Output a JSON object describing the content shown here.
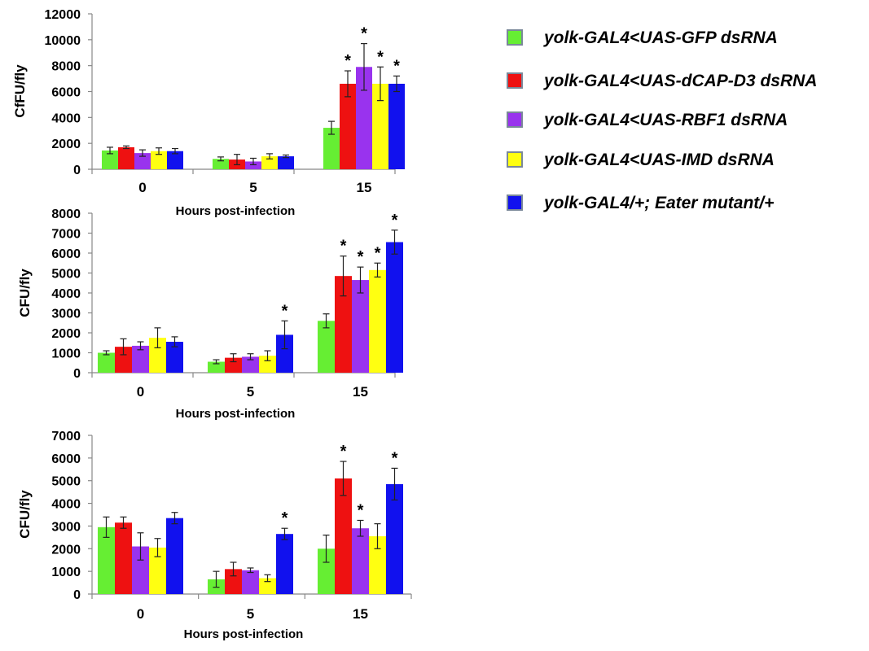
{
  "legend": [
    {
      "label": "yolk-GAL4<UAS-GFP dsRNA",
      "color": "#66ee33"
    },
    {
      "label": "yolk-GAL4<UAS-dCAP-D3 dsRNA",
      "color": "#ee1111"
    },
    {
      "label": "yolk-GAL4<UAS-RBF1 dsRNA",
      "color": "#9933ee"
    },
    {
      "label": "yolk-GAL4<UAS-IMD dsRNA",
      "color": "#ffff11"
    },
    {
      "label": "yolk-GAL4/+; Eater mutant/+",
      "color": "#1111ee"
    }
  ],
  "chart_data": [
    {
      "type": "bar",
      "categories": [
        "0",
        "5",
        "15"
      ],
      "xlabel": "Hours post-infection",
      "ylabel": "CfFU/fly",
      "ylim": [
        0,
        12000
      ],
      "yticks": [
        "0",
        "2000",
        "4000",
        "6000",
        "8000",
        "10000",
        "12000"
      ],
      "series": [
        {
          "name": "yolk-GAL4<UAS-GFP dsRNA",
          "values": [
            1450,
            800,
            3200
          ],
          "errors": [
            250,
            150,
            500
          ],
          "significant": [
            false,
            false,
            false
          ]
        },
        {
          "name": "yolk-GAL4<UAS-dCAP-D3 dsRNA",
          "values": [
            1700,
            750,
            6600
          ],
          "errors": [
            100,
            400,
            1000
          ],
          "significant": [
            false,
            false,
            true
          ]
        },
        {
          "name": "yolk-GAL4<UAS-RBF1 dsRNA",
          "values": [
            1250,
            600,
            7900
          ],
          "errors": [
            250,
            250,
            1800
          ],
          "significant": [
            false,
            false,
            true
          ]
        },
        {
          "name": "yolk-GAL4<UAS-IMD dsRNA",
          "values": [
            1400,
            1000,
            6600
          ],
          "errors": [
            250,
            200,
            1300
          ],
          "significant": [
            false,
            false,
            true
          ]
        },
        {
          "name": "yolk-GAL4/+; Eater mutant/+",
          "values": [
            1400,
            1000,
            6600
          ],
          "errors": [
            200,
            100,
            600
          ],
          "significant": [
            false,
            false,
            true
          ]
        }
      ]
    },
    {
      "type": "bar",
      "categories": [
        "0",
        "5",
        "15"
      ],
      "xlabel": "Hours post-infection",
      "ylabel": "CFU/fly",
      "ylim": [
        0,
        8000
      ],
      "yticks": [
        "0",
        "1000",
        "2000",
        "3000",
        "4000",
        "5000",
        "6000",
        "7000",
        "8000"
      ],
      "series": [
        {
          "name": "yolk-GAL4<UAS-GFP dsRNA",
          "values": [
            1000,
            550,
            2600
          ],
          "errors": [
            100,
            100,
            350
          ],
          "significant": [
            false,
            false,
            false
          ]
        },
        {
          "name": "yolk-GAL4<UAS-dCAP-D3 dsRNA",
          "values": [
            1300,
            750,
            4850
          ],
          "errors": [
            400,
            200,
            1000
          ],
          "significant": [
            false,
            false,
            true
          ]
        },
        {
          "name": "yolk-GAL4<UAS-RBF1 dsRNA",
          "values": [
            1350,
            800,
            4650
          ],
          "errors": [
            200,
            150,
            650
          ],
          "significant": [
            false,
            false,
            true
          ]
        },
        {
          "name": "yolk-GAL4<UAS-IMD dsRNA",
          "values": [
            1750,
            850,
            5150
          ],
          "errors": [
            500,
            250,
            350
          ],
          "significant": [
            false,
            false,
            true
          ]
        },
        {
          "name": "yolk-GAL4/+; Eater mutant/+",
          "values": [
            1550,
            1900,
            6550
          ],
          "errors": [
            250,
            700,
            600
          ],
          "significant": [
            false,
            true,
            true
          ]
        }
      ]
    },
    {
      "type": "bar",
      "categories": [
        "0",
        "5",
        "15"
      ],
      "xlabel": "Hours post-infection",
      "ylabel": "CFU/fly",
      "ylim": [
        0,
        7000
      ],
      "yticks": [
        "0",
        "1000",
        "2000",
        "3000",
        "4000",
        "5000",
        "6000",
        "7000"
      ],
      "series": [
        {
          "name": "yolk-GAL4<UAS-GFP dsRNA",
          "values": [
            2950,
            650,
            2000
          ],
          "errors": [
            450,
            350,
            600
          ],
          "significant": [
            false,
            false,
            false
          ]
        },
        {
          "name": "yolk-GAL4<UAS-dCAP-D3 dsRNA",
          "values": [
            3150,
            1100,
            5100
          ],
          "errors": [
            250,
            300,
            750
          ],
          "significant": [
            false,
            false,
            true
          ]
        },
        {
          "name": "yolk-GAL4<UAS-RBF1 dsRNA",
          "values": [
            2100,
            1050,
            2900
          ],
          "errors": [
            600,
            100,
            350
          ],
          "significant": [
            false,
            false,
            true
          ]
        },
        {
          "name": "yolk-GAL4<UAS-IMD dsRNA",
          "values": [
            2050,
            700,
            2550
          ],
          "errors": [
            400,
            150,
            550
          ],
          "significant": [
            false,
            false,
            false
          ]
        },
        {
          "name": "yolk-GAL4/+; Eater mutant/+",
          "values": [
            3350,
            2650,
            4850
          ],
          "errors": [
            250,
            250,
            700
          ],
          "significant": [
            false,
            true,
            true
          ]
        }
      ]
    }
  ]
}
